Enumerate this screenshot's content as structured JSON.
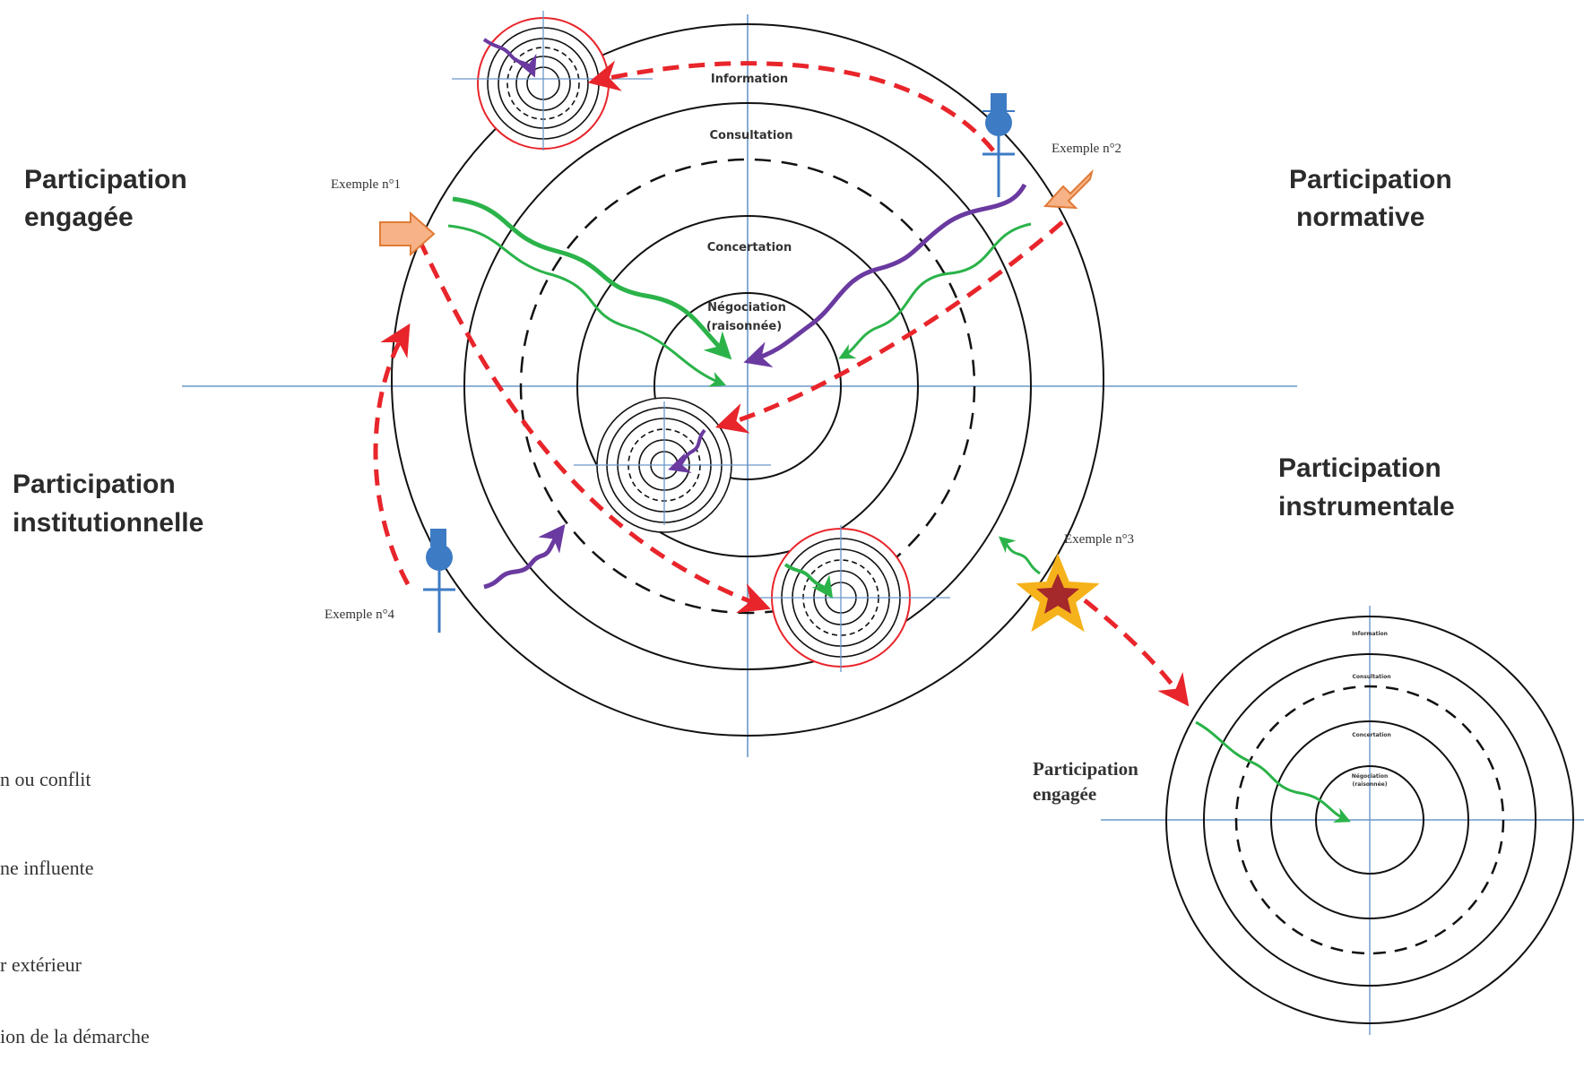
{
  "quadrants": {
    "engagee": [
      "Participation",
      "engagée"
    ],
    "normative": [
      "Participation",
      "normative"
    ],
    "institutionnelle": [
      "Participation",
      "institutionnelle"
    ],
    "instrumentale": [
      "Participation",
      "instrumentale"
    ]
  },
  "rings": {
    "information": "Information",
    "consultation": "Consultation",
    "concertation": "Concertation",
    "negociation": [
      "Négociation",
      "(raisonnée)"
    ]
  },
  "examples": {
    "ex1": "Exemple n°1",
    "ex2": "Exemple n°2",
    "ex3": "Exemple n°3",
    "ex4": "Exemple n°4"
  },
  "small_diagram": {
    "title": [
      "Participation",
      "engagée"
    ],
    "information": "Information",
    "consultation": "Consultation",
    "concertation": "Concertation",
    "negociation": [
      "Négociation",
      "(raisonnée)"
    ]
  },
  "legend": [
    "n ou conflit",
    "ne influente",
    "r extérieur",
    "ion de la démarche"
  ],
  "colors": {
    "axis": "#6b97c9",
    "ring": "#111111",
    "red_path": "#e8252b",
    "green_path": "#2bb34a",
    "purple_path": "#6a3aa0",
    "orange_arrow": "#f7b387",
    "person": "#3d7bc4",
    "star": "#f5b21a"
  }
}
